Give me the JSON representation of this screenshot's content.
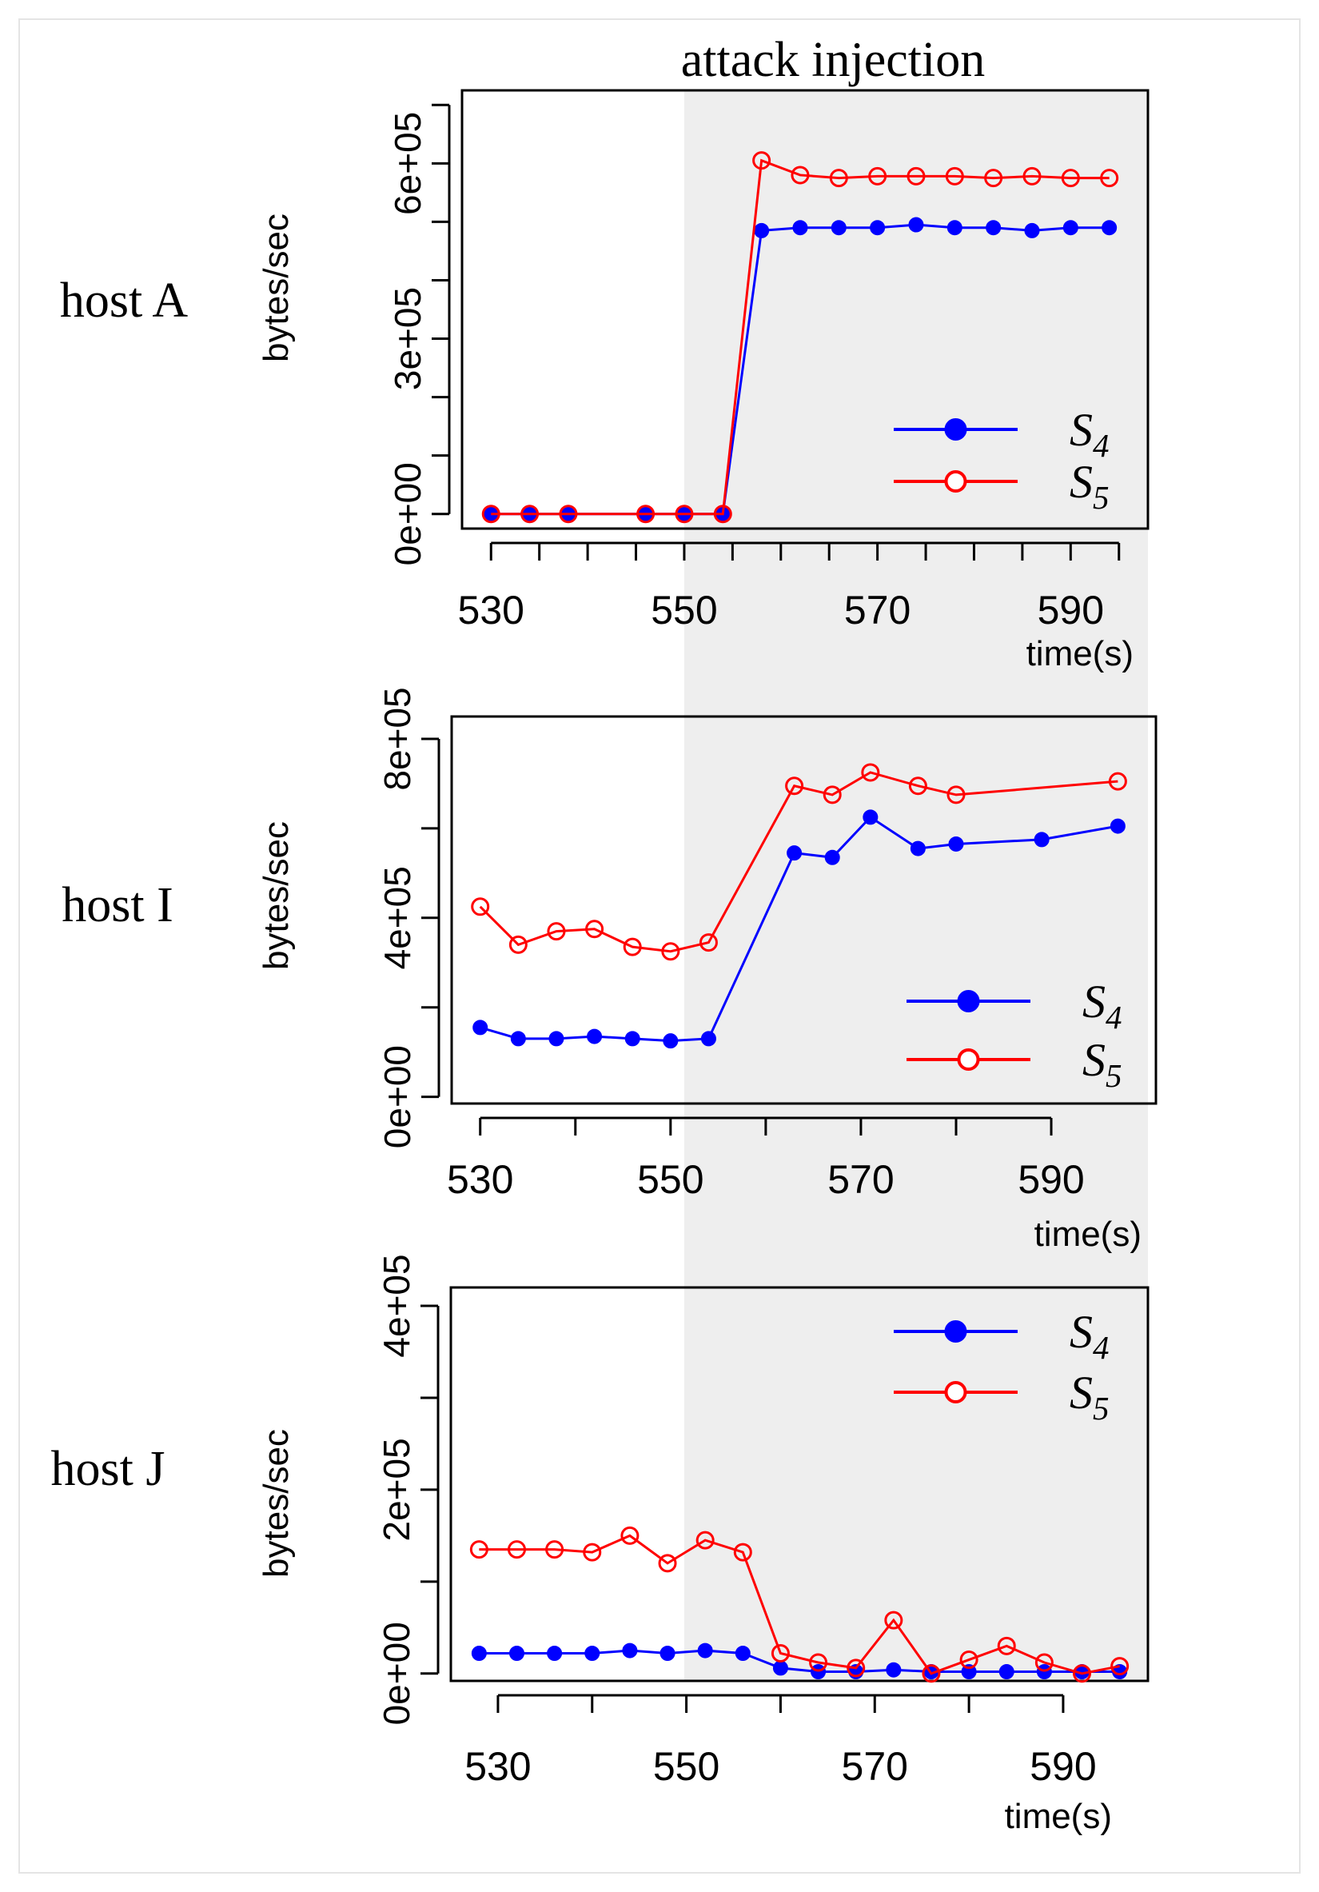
{
  "figure": {
    "attack_label": "attack injection",
    "attack_start": 550
  },
  "chart_data": [
    {
      "type": "line",
      "host": "host A",
      "ylabel": "bytes/sec",
      "xlabel": "time(s)",
      "xlim": [
        527,
        598
      ],
      "ylim": [
        -25000,
        725000
      ],
      "xticks": [
        530,
        550,
        570,
        590
      ],
      "xtick_minor": [
        530,
        535,
        540,
        545,
        550,
        555,
        560,
        565,
        570,
        575,
        580,
        585,
        590,
        595
      ],
      "yticks": [
        0,
        100000,
        200000,
        300000,
        400000,
        500000,
        600000,
        700000
      ],
      "ytick_labels": [
        {
          "v": 0,
          "t": "0e+00"
        },
        {
          "v": 300000,
          "t": "3e+05"
        },
        {
          "v": 600000,
          "t": "6e+05"
        }
      ],
      "legend": "bottom-right",
      "series": [
        {
          "name": "S4",
          "sub": "4",
          "color": "#0000ff",
          "marker": "filled",
          "x": [
            530,
            534,
            538,
            546,
            550,
            554,
            558,
            562,
            566,
            570,
            574,
            578,
            582,
            586,
            590,
            594
          ],
          "y": [
            0,
            0,
            0,
            0,
            0,
            0,
            485000,
            490000,
            490000,
            490000,
            495000,
            490000,
            490000,
            485000,
            490000,
            490000
          ]
        },
        {
          "name": "S5",
          "sub": "5",
          "color": "#ff0000",
          "marker": "open",
          "x": [
            530,
            534,
            538,
            546,
            550,
            554,
            558,
            562,
            566,
            570,
            574,
            578,
            582,
            586,
            590,
            594
          ],
          "y": [
            0,
            0,
            0,
            0,
            0,
            0,
            605000,
            580000,
            575000,
            578000,
            578000,
            578000,
            575000,
            578000,
            575000,
            575000
          ]
        }
      ]
    },
    {
      "type": "line",
      "host": "host I",
      "ylabel": "bytes/sec",
      "xlabel": "time(s)",
      "xlim": [
        527,
        601
      ],
      "ylim": [
        -15000,
        850000
      ],
      "xticks": [
        530,
        550,
        570,
        590
      ],
      "xtick_minor": [
        530,
        540,
        550,
        560,
        570,
        580,
        590
      ],
      "yticks": [
        0,
        200000,
        400000,
        600000,
        800000
      ],
      "ytick_labels": [
        {
          "v": 0,
          "t": "0e+00"
        },
        {
          "v": 400000,
          "t": "4e+05"
        },
        {
          "v": 800000,
          "t": "8e+05"
        }
      ],
      "legend": "bottom-right",
      "series": [
        {
          "name": "S4",
          "sub": "4",
          "color": "#0000ff",
          "marker": "filled",
          "x": [
            530,
            534,
            538,
            542,
            546,
            550,
            554,
            563,
            567,
            571,
            576,
            580,
            589,
            597
          ],
          "y": [
            155000,
            130000,
            130000,
            135000,
            130000,
            125000,
            130000,
            545000,
            535000,
            625000,
            555000,
            565000,
            575000,
            605000
          ]
        },
        {
          "name": "S5",
          "sub": "5",
          "color": "#ff0000",
          "marker": "open",
          "x": [
            530,
            534,
            538,
            542,
            546,
            550,
            554,
            563,
            567,
            571,
            576,
            580,
            597
          ],
          "y": [
            425000,
            340000,
            370000,
            375000,
            335000,
            325000,
            345000,
            695000,
            675000,
            725000,
            695000,
            675000,
            705000
          ]
        }
      ]
    },
    {
      "type": "line",
      "host": "host J",
      "ylabel": "bytes/sec",
      "xlabel": "time(s)",
      "xlim": [
        525,
        599
      ],
      "ylim": [
        -8000,
        420000
      ],
      "xticks": [
        530,
        550,
        570,
        590
      ],
      "xtick_minor": [
        530,
        540,
        550,
        560,
        570,
        580,
        590
      ],
      "yticks": [
        0,
        100000,
        200000,
        300000,
        400000
      ],
      "ytick_labels": [
        {
          "v": 0,
          "t": "0e+00"
        },
        {
          "v": 200000,
          "t": "2e+05"
        },
        {
          "v": 400000,
          "t": "4e+05"
        }
      ],
      "legend": "top-right",
      "series": [
        {
          "name": "S4",
          "sub": "4",
          "color": "#0000ff",
          "marker": "filled",
          "x": [
            528,
            532,
            536,
            540,
            544,
            548,
            552,
            556,
            560,
            564,
            568,
            572,
            576,
            580,
            584,
            588,
            592,
            596
          ],
          "y": [
            22000,
            22000,
            22000,
            22000,
            25000,
            22000,
            25000,
            22000,
            6000,
            2000,
            2000,
            4000,
            2000,
            2000,
            2000,
            2000,
            2000,
            2000
          ]
        },
        {
          "name": "S5",
          "sub": "5",
          "color": "#ff0000",
          "marker": "open",
          "x": [
            528,
            532,
            536,
            540,
            544,
            548,
            552,
            556,
            560,
            564,
            568,
            572,
            576,
            580,
            584,
            588,
            592,
            596
          ],
          "y": [
            135000,
            135000,
            135000,
            132000,
            150000,
            120000,
            145000,
            132000,
            22000,
            12000,
            6000,
            58000,
            0,
            15000,
            30000,
            12000,
            0,
            8000
          ]
        }
      ]
    }
  ]
}
